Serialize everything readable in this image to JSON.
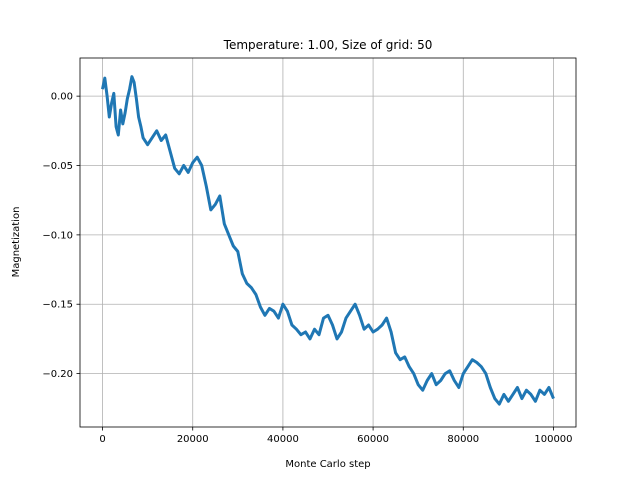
{
  "chart_data": {
    "type": "line",
    "title": "Temperature: 1.00, Size of grid: 50",
    "xlabel": "Monte Carlo step",
    "ylabel": "Magnetization",
    "xlim": [
      -5000,
      105000
    ],
    "ylim": [
      -0.2385,
      0.0275
    ],
    "grid": true,
    "line_color": "#1f77b4",
    "xticks": [
      0,
      20000,
      40000,
      60000,
      80000,
      100000
    ],
    "xtick_labels": [
      "0",
      "20000",
      "40000",
      "60000",
      "80000",
      "100000"
    ],
    "yticks": [
      0.0,
      -0.05,
      -0.1,
      -0.15,
      -0.2
    ],
    "ytick_labels": [
      "0.00",
      "−0.05",
      "−0.10",
      "−0.15",
      "−0.20"
    ],
    "series": [
      {
        "x": [
          0,
          500,
          1000,
          1500,
          2000,
          2500,
          3000,
          3500,
          4000,
          4500,
          5000,
          5500,
          6000,
          6500,
          7000,
          7500,
          8000,
          8500,
          9000,
          10000,
          11000,
          12000,
          13000,
          14000,
          15000,
          16000,
          17000,
          18000,
          19000,
          20000,
          21000,
          22000,
          23000,
          24000,
          25000,
          26000,
          27000,
          28000,
          29000,
          30000,
          31000,
          32000,
          33000,
          34000,
          35000,
          36000,
          37000,
          38000,
          39000,
          40000,
          41000,
          42000,
          43000,
          44000,
          45000,
          46000,
          47000,
          48000,
          49000,
          50000,
          51000,
          52000,
          53000,
          54000,
          55000,
          56000,
          57000,
          58000,
          59000,
          60000,
          61000,
          62000,
          63000,
          64000,
          65000,
          66000,
          67000,
          68000,
          69000,
          70000,
          71000,
          72000,
          73000,
          74000,
          75000,
          76000,
          77000,
          78000,
          79000,
          80000,
          81000,
          82000,
          83000,
          84000,
          85000,
          86000,
          87000,
          88000,
          89000,
          90000,
          91000,
          92000,
          93000,
          94000,
          95000,
          96000,
          97000,
          98000,
          99000,
          100000
        ],
        "y": [
          0.005,
          0.013,
          0.0,
          -0.015,
          -0.005,
          0.002,
          -0.022,
          -0.028,
          -0.01,
          -0.02,
          -0.012,
          -0.002,
          0.005,
          0.014,
          0.01,
          -0.002,
          -0.015,
          -0.022,
          -0.03,
          -0.035,
          -0.03,
          -0.025,
          -0.032,
          -0.028,
          -0.04,
          -0.052,
          -0.056,
          -0.05,
          -0.055,
          -0.048,
          -0.044,
          -0.05,
          -0.065,
          -0.082,
          -0.078,
          -0.072,
          -0.092,
          -0.1,
          -0.108,
          -0.112,
          -0.128,
          -0.135,
          -0.138,
          -0.143,
          -0.152,
          -0.158,
          -0.153,
          -0.155,
          -0.16,
          -0.15,
          -0.155,
          -0.165,
          -0.168,
          -0.172,
          -0.17,
          -0.175,
          -0.168,
          -0.172,
          -0.16,
          -0.158,
          -0.165,
          -0.175,
          -0.17,
          -0.16,
          -0.155,
          -0.15,
          -0.158,
          -0.168,
          -0.165,
          -0.17,
          -0.168,
          -0.165,
          -0.16,
          -0.17,
          -0.185,
          -0.19,
          -0.188,
          -0.195,
          -0.2,
          -0.208,
          -0.212,
          -0.205,
          -0.2,
          -0.208,
          -0.205,
          -0.2,
          -0.198,
          -0.205,
          -0.21,
          -0.2,
          -0.195,
          -0.19,
          -0.192,
          -0.195,
          -0.2,
          -0.21,
          -0.218,
          -0.222,
          -0.215,
          -0.22,
          -0.215,
          -0.21,
          -0.218,
          -0.212,
          -0.215,
          -0.22,
          -0.212,
          -0.215,
          -0.21,
          -0.218
        ]
      }
    ]
  }
}
